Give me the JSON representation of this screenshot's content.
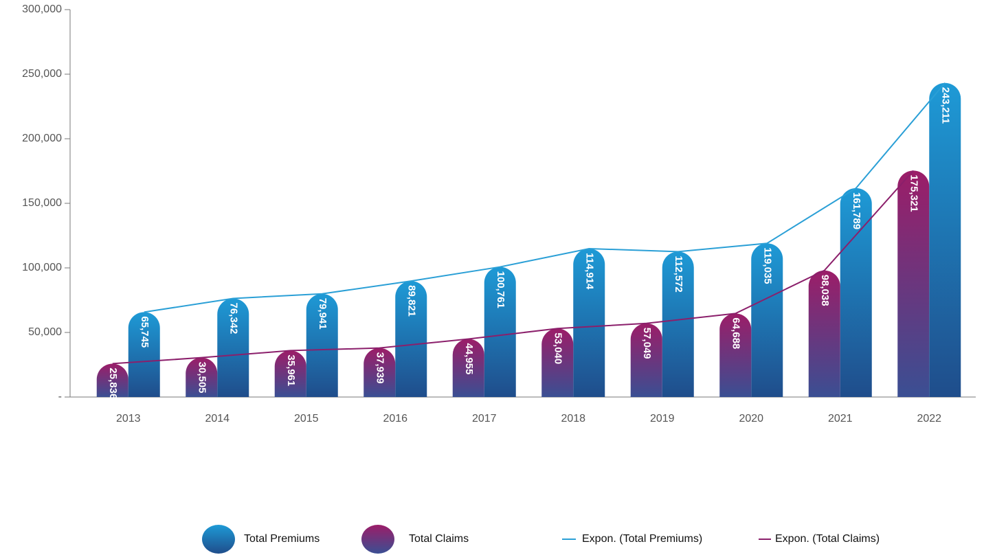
{
  "chart_data": {
    "type": "bar",
    "categories": [
      "2013",
      "2014",
      "2015",
      "2016",
      "2017",
      "2018",
      "2019",
      "2020",
      "2021",
      "2022"
    ],
    "series": [
      {
        "name": "Total Premiums",
        "color": "#1e9ad6",
        "bottom_color": "#1f4d8b",
        "values": [
          65745,
          76342,
          79941,
          89821,
          100761,
          114914,
          112572,
          119035,
          161789,
          243211
        ],
        "value_labels": [
          "65,745",
          "76,342",
          "79,941",
          "89,821",
          "100,761",
          "114,914",
          "112,572",
          "119,035",
          "161,789",
          "243,211"
        ],
        "trend_name": "Expon. (Total Premiums)",
        "trend_color": "#2a9fd6"
      },
      {
        "name": "Total Claims",
        "color": "#9c1d68",
        "bottom_color": "#3a4f93",
        "values": [
          25836,
          30505,
          35961,
          37939,
          44955,
          53040,
          57049,
          64688,
          98038,
          175321
        ],
        "value_labels": [
          "25,836",
          "30,505",
          "35,961",
          "37,939",
          "44,955",
          "53,040",
          "57,049",
          "64,688",
          "98,038",
          "175,321"
        ],
        "trend_name": "Expon. (Total Claims)",
        "trend_color": "#8b1f6b"
      }
    ],
    "ylim": [
      0,
      300000
    ],
    "yticks": [
      {
        "value": 0,
        "label": "-"
      },
      {
        "value": 50000,
        "label": "50,000"
      },
      {
        "value": 100000,
        "label": "100,000"
      },
      {
        "value": 150000,
        "label": "150,000"
      },
      {
        "value": 200000,
        "label": "200,000"
      },
      {
        "value": 250000,
        "label": "250,000"
      },
      {
        "value": 300000,
        "label": "300,000"
      }
    ],
    "legend": "bottom"
  }
}
